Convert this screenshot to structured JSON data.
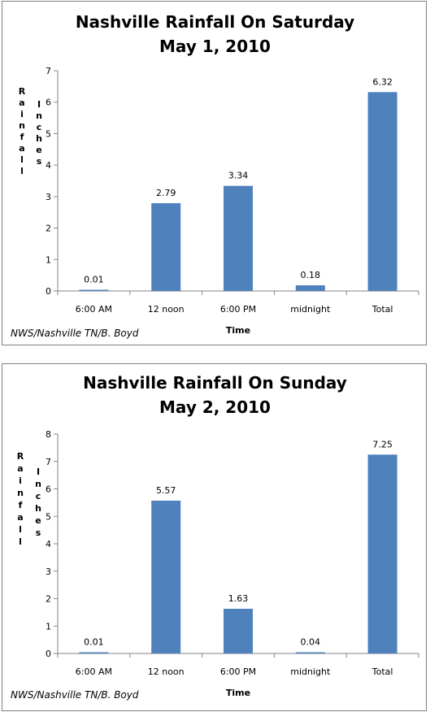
{
  "chart_data": [
    {
      "type": "bar",
      "title_line1": "Nashville Rainfall On Saturday",
      "title_line2": "May 1, 2010",
      "xlabel": "Time",
      "ylabel_words": [
        "Rainfall",
        "Inches"
      ],
      "categories": [
        "6:00 AM",
        "12 noon",
        "6:00 PM",
        "midnight",
        "Total"
      ],
      "values": [
        0.01,
        2.79,
        3.34,
        0.18,
        6.32
      ],
      "data_labels": [
        "0.01",
        "2.79",
        "3.34",
        "0.18",
        "6.32"
      ],
      "ylim": [
        0,
        7
      ],
      "yticks": [
        0,
        1,
        2,
        3,
        4,
        5,
        6,
        7
      ],
      "credit": "NWS/Nashville TN/B. Boyd",
      "bar_color": "#4f81bd",
      "grid": false
    },
    {
      "type": "bar",
      "title_line1": "Nashville Rainfall On Sunday",
      "title_line2": "May 2, 2010",
      "xlabel": "Time",
      "ylabel_words": [
        "Rainfall",
        "Inches"
      ],
      "categories": [
        "6:00 AM",
        "12 noon",
        "6:00 PM",
        "midnight",
        "Total"
      ],
      "values": [
        0.01,
        5.57,
        1.63,
        0.04,
        7.25
      ],
      "data_labels": [
        "0.01",
        "5.57",
        "1.63",
        "0.04",
        "7.25"
      ],
      "ylim": [
        0,
        8
      ],
      "yticks": [
        0,
        1,
        2,
        3,
        4,
        5,
        6,
        7,
        8
      ],
      "credit": "NWS/Nashville TN/B. Boyd",
      "bar_color": "#4f81bd",
      "grid": false
    }
  ]
}
